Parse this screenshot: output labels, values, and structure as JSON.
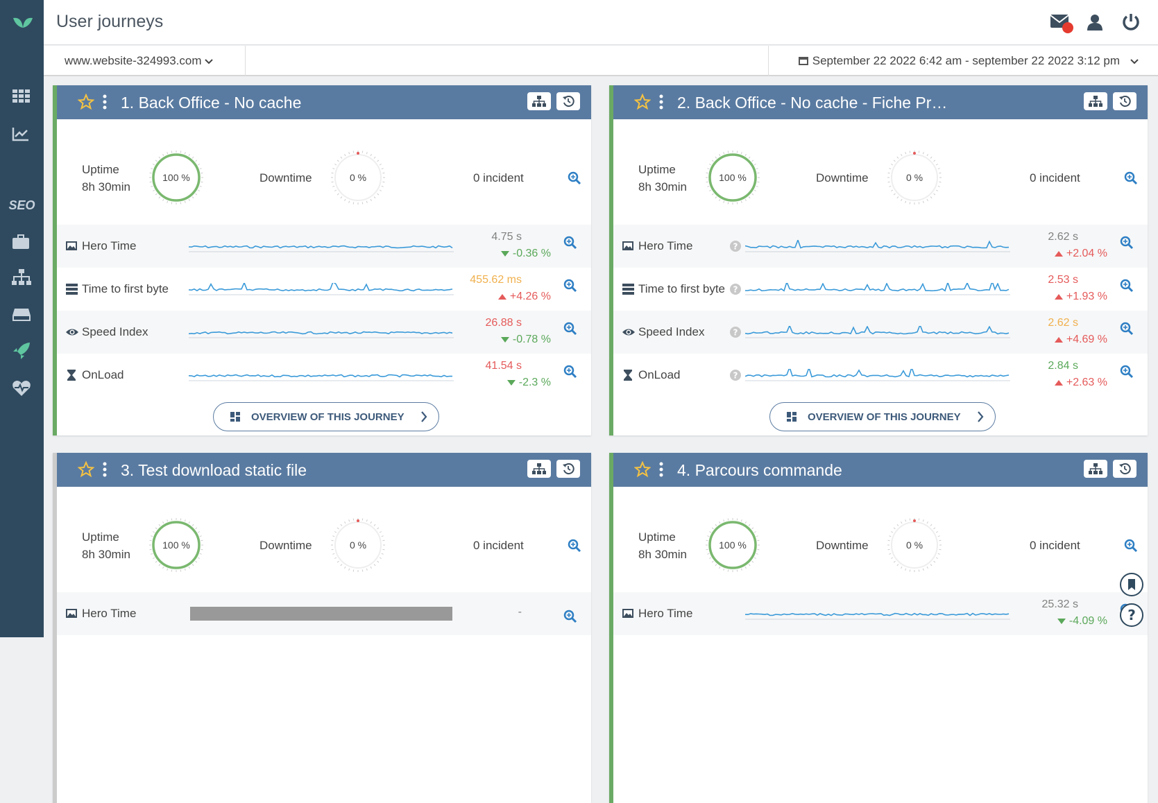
{
  "header": {
    "title": "User journeys"
  },
  "toolbar": {
    "site": "www.website-324993.com",
    "date_range": "September 22 2022 6:42 am - september 22 2022 3:12 pm"
  },
  "sidebar": {
    "seo": "SEO"
  },
  "journeys": [
    {
      "title": "1. Back Office - No cache",
      "status_color": "#6aaa64",
      "help": false,
      "uptime_label": "Uptime",
      "uptime_duration": "8h 30min",
      "uptime_pct": "100 %",
      "downtime_label": "Downtime",
      "downtime_pct": "0 %",
      "incidents": "0 incident",
      "metrics": [
        {
          "icon": "image",
          "name": "Hero Time",
          "value": "4.75 s",
          "value_color": "#808080",
          "change": "-0.36 %",
          "trend": "down"
        },
        {
          "icon": "server",
          "name": "Time to first byte",
          "value": "455.62 ms",
          "value_color": "#f0b04d",
          "change": "+4.26 %",
          "trend": "up"
        },
        {
          "icon": "eye",
          "name": "Speed Index",
          "value": "26.88 s",
          "value_color": "#e55a5a",
          "change": "-0.78 %",
          "trend": "down"
        },
        {
          "icon": "hourglass",
          "name": "OnLoad",
          "value": "41.54 s",
          "value_color": "#e55a5a",
          "change": "-2.3 %",
          "trend": "down"
        }
      ],
      "overview": "OVERVIEW OF THIS JOURNEY"
    },
    {
      "title": "2. Back Office - No cache - Fiche Pr…",
      "status_color": "#6aaa64",
      "help": true,
      "uptime_label": "Uptime",
      "uptime_duration": "8h 30min",
      "uptime_pct": "100 %",
      "downtime_label": "Downtime",
      "downtime_pct": "0 %",
      "incidents": "0 incident",
      "metrics": [
        {
          "icon": "image",
          "name": "Hero Time",
          "value": "2.62 s",
          "value_color": "#808080",
          "change": "+2.04 %",
          "trend": "up"
        },
        {
          "icon": "server",
          "name": "Time to first byte",
          "value": "2.53 s",
          "value_color": "#e55a5a",
          "change": "+1.93 %",
          "trend": "up"
        },
        {
          "icon": "eye",
          "name": "Speed Index",
          "value": "2.62 s",
          "value_color": "#f0b04d",
          "change": "+4.69 %",
          "trend": "up"
        },
        {
          "icon": "hourglass",
          "name": "OnLoad",
          "value": "2.84 s",
          "value_color": "#5aa85a",
          "change": "+2.63 %",
          "trend": "up"
        }
      ],
      "overview": "OVERVIEW OF THIS JOURNEY"
    },
    {
      "title": "3. Test download static file",
      "status_color": "#cccccc",
      "help": false,
      "uptime_label": "Uptime",
      "uptime_duration": "8h 30min",
      "uptime_pct": "100 %",
      "downtime_label": "Downtime",
      "downtime_pct": "0 %",
      "incidents": "0 incident",
      "metrics": [
        {
          "icon": "image",
          "name": "Hero Time",
          "value": "-",
          "value_color": "#808080",
          "empty": true
        }
      ]
    },
    {
      "title": "4. Parcours commande",
      "status_color": "#6aaa64",
      "help": false,
      "uptime_label": "Uptime",
      "uptime_duration": "8h 30min",
      "uptime_pct": "100 %",
      "downtime_label": "Downtime",
      "downtime_pct": "0 %",
      "incidents": "0 incident",
      "metrics": [
        {
          "icon": "image",
          "name": "Hero Time",
          "value": "25.32 s",
          "value_color": "#808080",
          "change": "-4.09 %",
          "trend": "down"
        }
      ]
    }
  ]
}
